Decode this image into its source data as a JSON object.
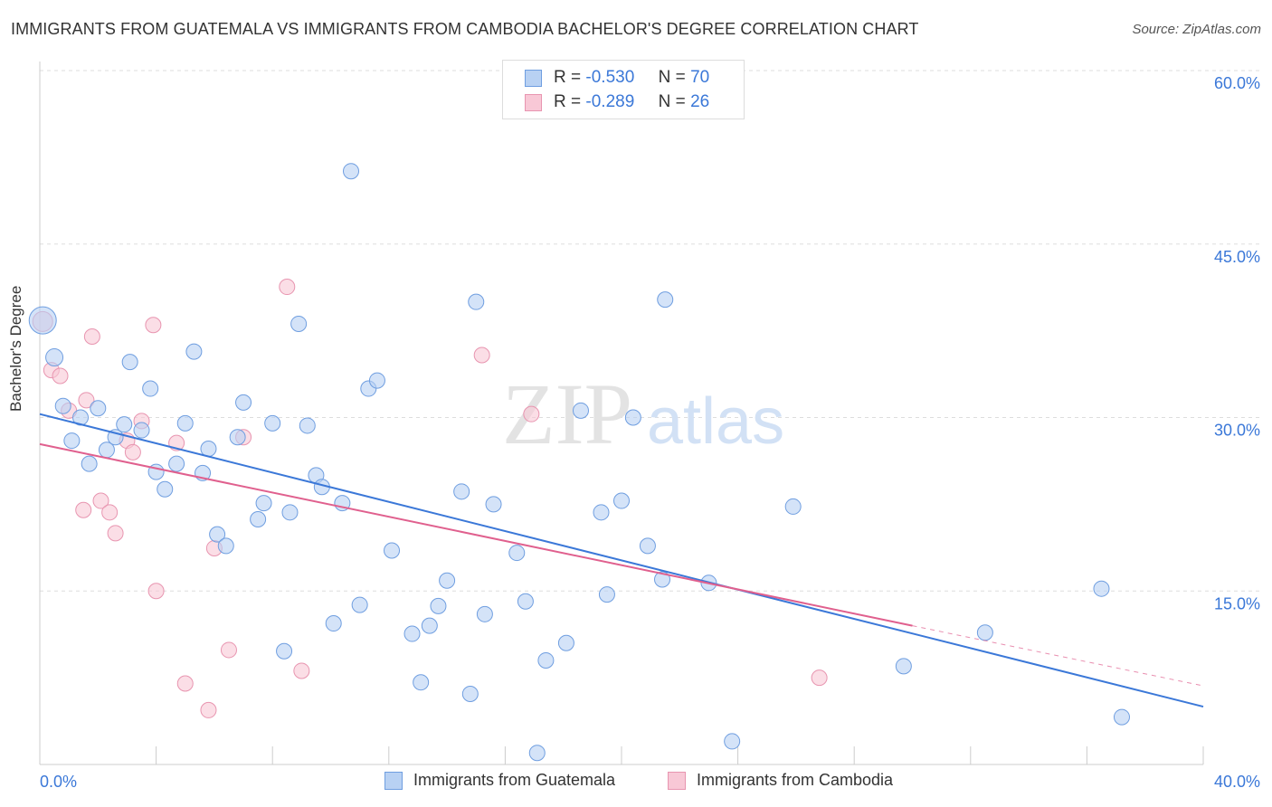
{
  "title": "IMMIGRANTS FROM GUATEMALA VS IMMIGRANTS FROM CAMBODIA BACHELOR'S DEGREE CORRELATION CHART",
  "source": "Source: ZipAtlas.com",
  "watermark": {
    "zip": "ZIP",
    "atlas": "atlas"
  },
  "legend": {
    "series": [
      {
        "r_label": "R =",
        "r_value": "-0.530",
        "n_label": "N =",
        "n_value": "70"
      },
      {
        "r_label": "R =",
        "r_value": "-0.289",
        "n_label": "N =",
        "n_value": "26"
      }
    ]
  },
  "bottom_legend": [
    "Immigrants from Guatemala",
    "Immigrants from Cambodia"
  ],
  "colors": {
    "guatemala_fill": "#b8d1f3",
    "guatemala_stroke": "#6f9ee0",
    "guatemala_line": "#3b78d8",
    "cambodia_fill": "#f8c8d6",
    "cambodia_stroke": "#e895b0",
    "cambodia_line": "#e0608e",
    "axis_text": "#3b78d8",
    "grid": "#dddddd"
  },
  "chart_data": {
    "type": "scatter",
    "xlabel": "",
    "ylabel": "Bachelor's Degree",
    "xlim": [
      0,
      40
    ],
    "ylim": [
      0,
      60
    ],
    "x_tick_labels": [
      "0.0%",
      "40.0%"
    ],
    "y_ticks": [
      15,
      30,
      45,
      60
    ],
    "y_tick_labels": [
      "15.0%",
      "30.0%",
      "45.0%",
      "60.0%"
    ],
    "grid": true,
    "series": [
      {
        "name": "Immigrants from Guatemala",
        "points": [
          [
            0.1,
            38.4,
            30
          ],
          [
            0.5,
            35.2,
            19
          ],
          [
            0.8,
            31.0,
            17
          ],
          [
            1.1,
            28.0,
            17
          ],
          [
            1.4,
            30.0,
            17
          ],
          [
            1.7,
            26.0,
            17
          ],
          [
            2.0,
            30.8,
            17
          ],
          [
            2.3,
            27.2,
            17
          ],
          [
            2.6,
            28.3,
            17
          ],
          [
            2.9,
            29.4,
            17
          ],
          [
            3.1,
            34.8,
            17
          ],
          [
            3.5,
            28.9,
            17
          ],
          [
            3.8,
            32.5,
            17
          ],
          [
            4.0,
            25.3,
            17
          ],
          [
            4.3,
            23.8,
            17
          ],
          [
            4.7,
            26.0,
            17
          ],
          [
            5.0,
            29.5,
            17
          ],
          [
            5.3,
            35.7,
            17
          ],
          [
            5.6,
            25.2,
            17
          ],
          [
            5.8,
            27.3,
            17
          ],
          [
            6.1,
            19.9,
            17
          ],
          [
            6.4,
            18.9,
            17
          ],
          [
            6.8,
            28.3,
            17
          ],
          [
            7.0,
            31.3,
            17
          ],
          [
            7.5,
            21.2,
            17
          ],
          [
            7.7,
            22.6,
            17
          ],
          [
            8.0,
            29.5,
            17
          ],
          [
            8.4,
            9.8,
            17
          ],
          [
            8.6,
            21.8,
            17
          ],
          [
            8.9,
            38.1,
            17
          ],
          [
            9.2,
            29.3,
            17
          ],
          [
            9.5,
            25.0,
            17
          ],
          [
            9.7,
            24.0,
            17
          ],
          [
            10.1,
            12.2,
            17
          ],
          [
            10.4,
            22.6,
            17
          ],
          [
            10.7,
            51.3,
            17
          ],
          [
            11.0,
            13.8,
            17
          ],
          [
            11.3,
            32.5,
            17
          ],
          [
            11.6,
            33.2,
            17
          ],
          [
            12.1,
            18.5,
            17
          ],
          [
            12.8,
            11.3,
            17
          ],
          [
            13.1,
            7.1,
            17
          ],
          [
            13.4,
            12.0,
            17
          ],
          [
            13.7,
            13.7,
            17
          ],
          [
            14.0,
            15.9,
            17
          ],
          [
            14.5,
            23.6,
            17
          ],
          [
            14.8,
            6.1,
            17
          ],
          [
            15.0,
            40.0,
            17
          ],
          [
            15.3,
            13.0,
            17
          ],
          [
            15.6,
            22.5,
            17
          ],
          [
            16.4,
            18.3,
            17
          ],
          [
            16.7,
            14.1,
            17
          ],
          [
            17.1,
            1.0,
            17
          ],
          [
            17.4,
            9.0,
            17
          ],
          [
            18.1,
            10.5,
            17
          ],
          [
            18.6,
            30.6,
            17
          ],
          [
            19.3,
            21.8,
            17
          ],
          [
            19.5,
            14.7,
            17
          ],
          [
            20.0,
            22.8,
            17
          ],
          [
            20.4,
            30.0,
            17
          ],
          [
            20.9,
            18.9,
            17
          ],
          [
            21.4,
            16.0,
            17
          ],
          [
            21.5,
            40.2,
            17
          ],
          [
            23.0,
            15.7,
            17
          ],
          [
            23.8,
            2.0,
            17
          ],
          [
            25.9,
            22.3,
            17
          ],
          [
            29.7,
            8.5,
            17
          ],
          [
            32.5,
            11.4,
            17
          ],
          [
            36.5,
            15.2,
            17
          ],
          [
            37.2,
            4.1,
            17
          ]
        ],
        "trend": [
          [
            0.0,
            30.3
          ],
          [
            40.0,
            5.0
          ]
        ]
      },
      {
        "name": "Immigrants from Cambodia",
        "points": [
          [
            0.1,
            38.3,
            22
          ],
          [
            0.4,
            34.1,
            17
          ],
          [
            0.7,
            33.6,
            17
          ],
          [
            1.0,
            30.6,
            17
          ],
          [
            1.5,
            22.0,
            17
          ],
          [
            1.6,
            31.5,
            17
          ],
          [
            1.8,
            37.0,
            17
          ],
          [
            2.1,
            22.8,
            17
          ],
          [
            2.4,
            21.8,
            17
          ],
          [
            2.6,
            20.0,
            17
          ],
          [
            3.0,
            28.0,
            17
          ],
          [
            3.2,
            27.0,
            17
          ],
          [
            3.5,
            29.7,
            17
          ],
          [
            3.9,
            38.0,
            17
          ],
          [
            4.0,
            15.0,
            17
          ],
          [
            4.7,
            27.8,
            17
          ],
          [
            5.0,
            7.0,
            17
          ],
          [
            5.8,
            4.7,
            17
          ],
          [
            6.0,
            18.7,
            17
          ],
          [
            6.5,
            9.9,
            17
          ],
          [
            7.0,
            28.3,
            17
          ],
          [
            8.5,
            41.3,
            17
          ],
          [
            9.0,
            8.1,
            17
          ],
          [
            15.2,
            35.4,
            17
          ],
          [
            16.9,
            30.3,
            17
          ],
          [
            26.8,
            7.5,
            17
          ]
        ],
        "trend": [
          [
            0.0,
            27.7
          ],
          [
            30.0,
            12.0
          ]
        ],
        "trend_dashed": [
          [
            30.0,
            12.0
          ],
          [
            40.0,
            6.8
          ]
        ]
      }
    ]
  }
}
